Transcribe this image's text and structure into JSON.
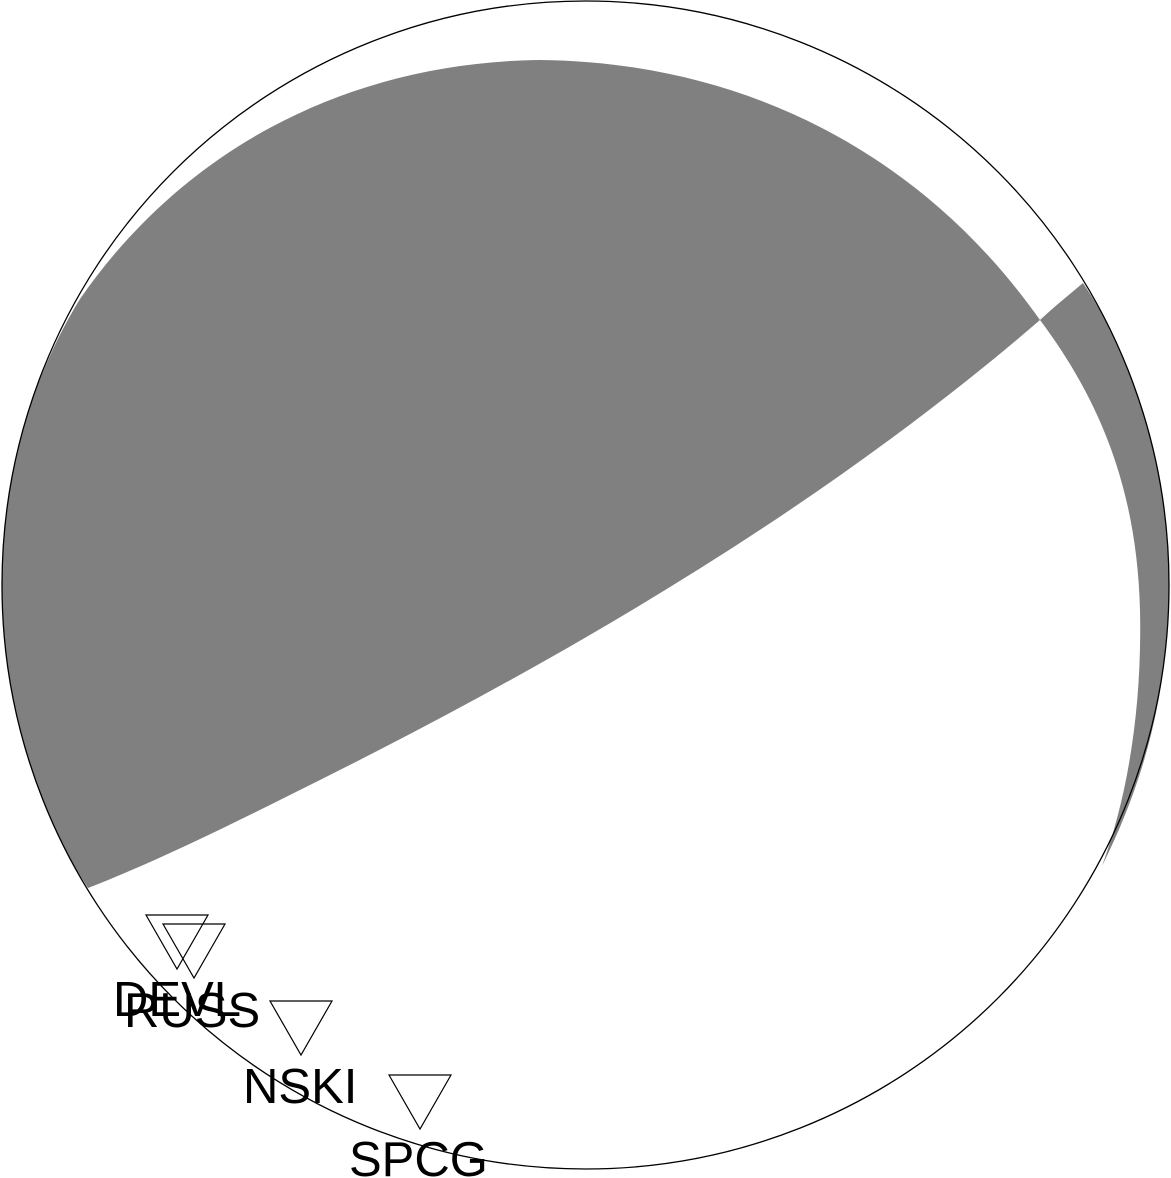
{
  "colors": {
    "background": "#ffffff",
    "compression_fill": "#808080",
    "dilatation_fill": "#ffffff",
    "outline": "#000000",
    "station_marker": "#000000",
    "station_label": "#000000"
  },
  "stations": [
    {
      "name": "DEVL",
      "polarity": "down-triangle"
    },
    {
      "name": "RUSS",
      "polarity": "down-triangle"
    },
    {
      "name": "NSKI",
      "polarity": "down-triangle"
    },
    {
      "name": "SPCG",
      "polarity": "down-triangle"
    }
  ]
}
